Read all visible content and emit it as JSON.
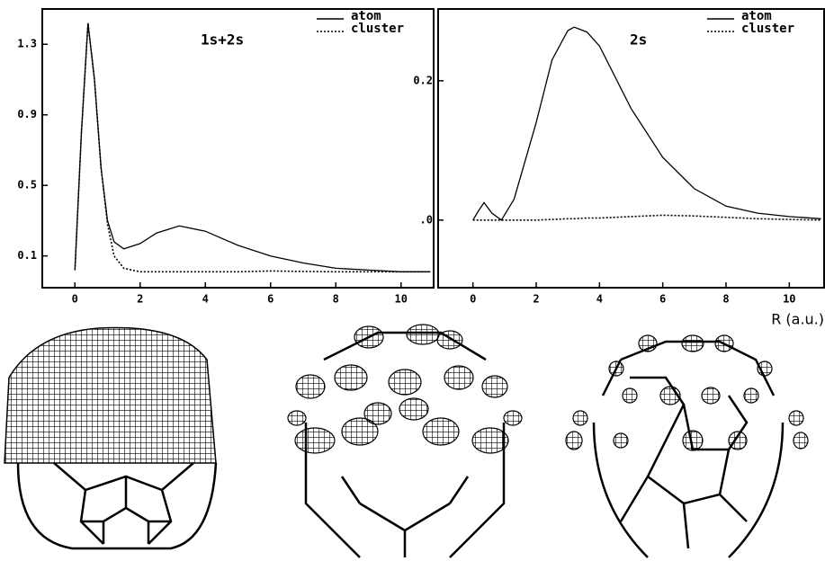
{
  "chart_data": [
    {
      "type": "line",
      "annotation": "1s+2s",
      "x": [
        0,
        0.2,
        0.4,
        0.6,
        0.8,
        1.0,
        1.2,
        1.5,
        2,
        2.5,
        3.2,
        4,
        5,
        6,
        7,
        8,
        9,
        10,
        10.9
      ],
      "series": [
        {
          "name": "atom",
          "color": "#000",
          "dash": "solid",
          "values": [
            0.02,
            0.8,
            1.42,
            1.1,
            0.6,
            0.3,
            0.18,
            0.14,
            0.17,
            0.23,
            0.27,
            0.24,
            0.16,
            0.1,
            0.06,
            0.03,
            0.02,
            0.01,
            0.01
          ]
        },
        {
          "name": "cluster",
          "color": "#000",
          "dash": "dotted",
          "values": [
            0.02,
            0.8,
            1.42,
            1.1,
            0.6,
            0.28,
            0.1,
            0.03,
            0.01,
            0.01,
            0.01,
            0.01,
            0.01,
            0.015,
            0.012,
            0.01,
            0.01,
            0.01,
            0.01
          ]
        }
      ],
      "xlim": [
        -1,
        11
      ],
      "ylim": [
        -0.08,
        1.5
      ],
      "xticks": [
        0,
        2,
        4,
        6,
        8,
        10
      ],
      "yticks": [
        0.1,
        0.5,
        0.9,
        1.3
      ]
    },
    {
      "type": "line",
      "annotation": "2s",
      "xlabel": "R (a.u.)",
      "x": [
        0,
        0.2,
        0.35,
        0.6,
        0.9,
        1.3,
        2,
        2.5,
        3,
        3.2,
        3.6,
        4,
        5,
        6,
        7,
        8,
        9,
        10,
        11
      ],
      "series": [
        {
          "name": "atom",
          "color": "#000",
          "dash": "solid",
          "values": [
            0.0,
            0.015,
            0.025,
            0.01,
            0.0,
            0.03,
            0.14,
            0.23,
            0.272,
            0.277,
            0.27,
            0.25,
            0.16,
            0.09,
            0.045,
            0.02,
            0.01,
            0.005,
            0.002
          ]
        },
        {
          "name": "cluster",
          "color": "#000",
          "dash": "dotted",
          "values": [
            0.0,
            0.0,
            0.0,
            0.0,
            0.0,
            0.0,
            0.0,
            0.001,
            0.002,
            0.002,
            0.003,
            0.003,
            0.005,
            0.007,
            0.006,
            0.004,
            0.002,
            0.001,
            0.0
          ]
        }
      ],
      "xlim": [
        -1.1,
        11.1
      ],
      "ylim": [
        -0.097,
        0.303
      ],
      "xticks": [
        0,
        2,
        4,
        6,
        8,
        10
      ],
      "yticks": [
        {
          "value": 0,
          "label": ".0"
        },
        0.2
      ]
    }
  ]
}
